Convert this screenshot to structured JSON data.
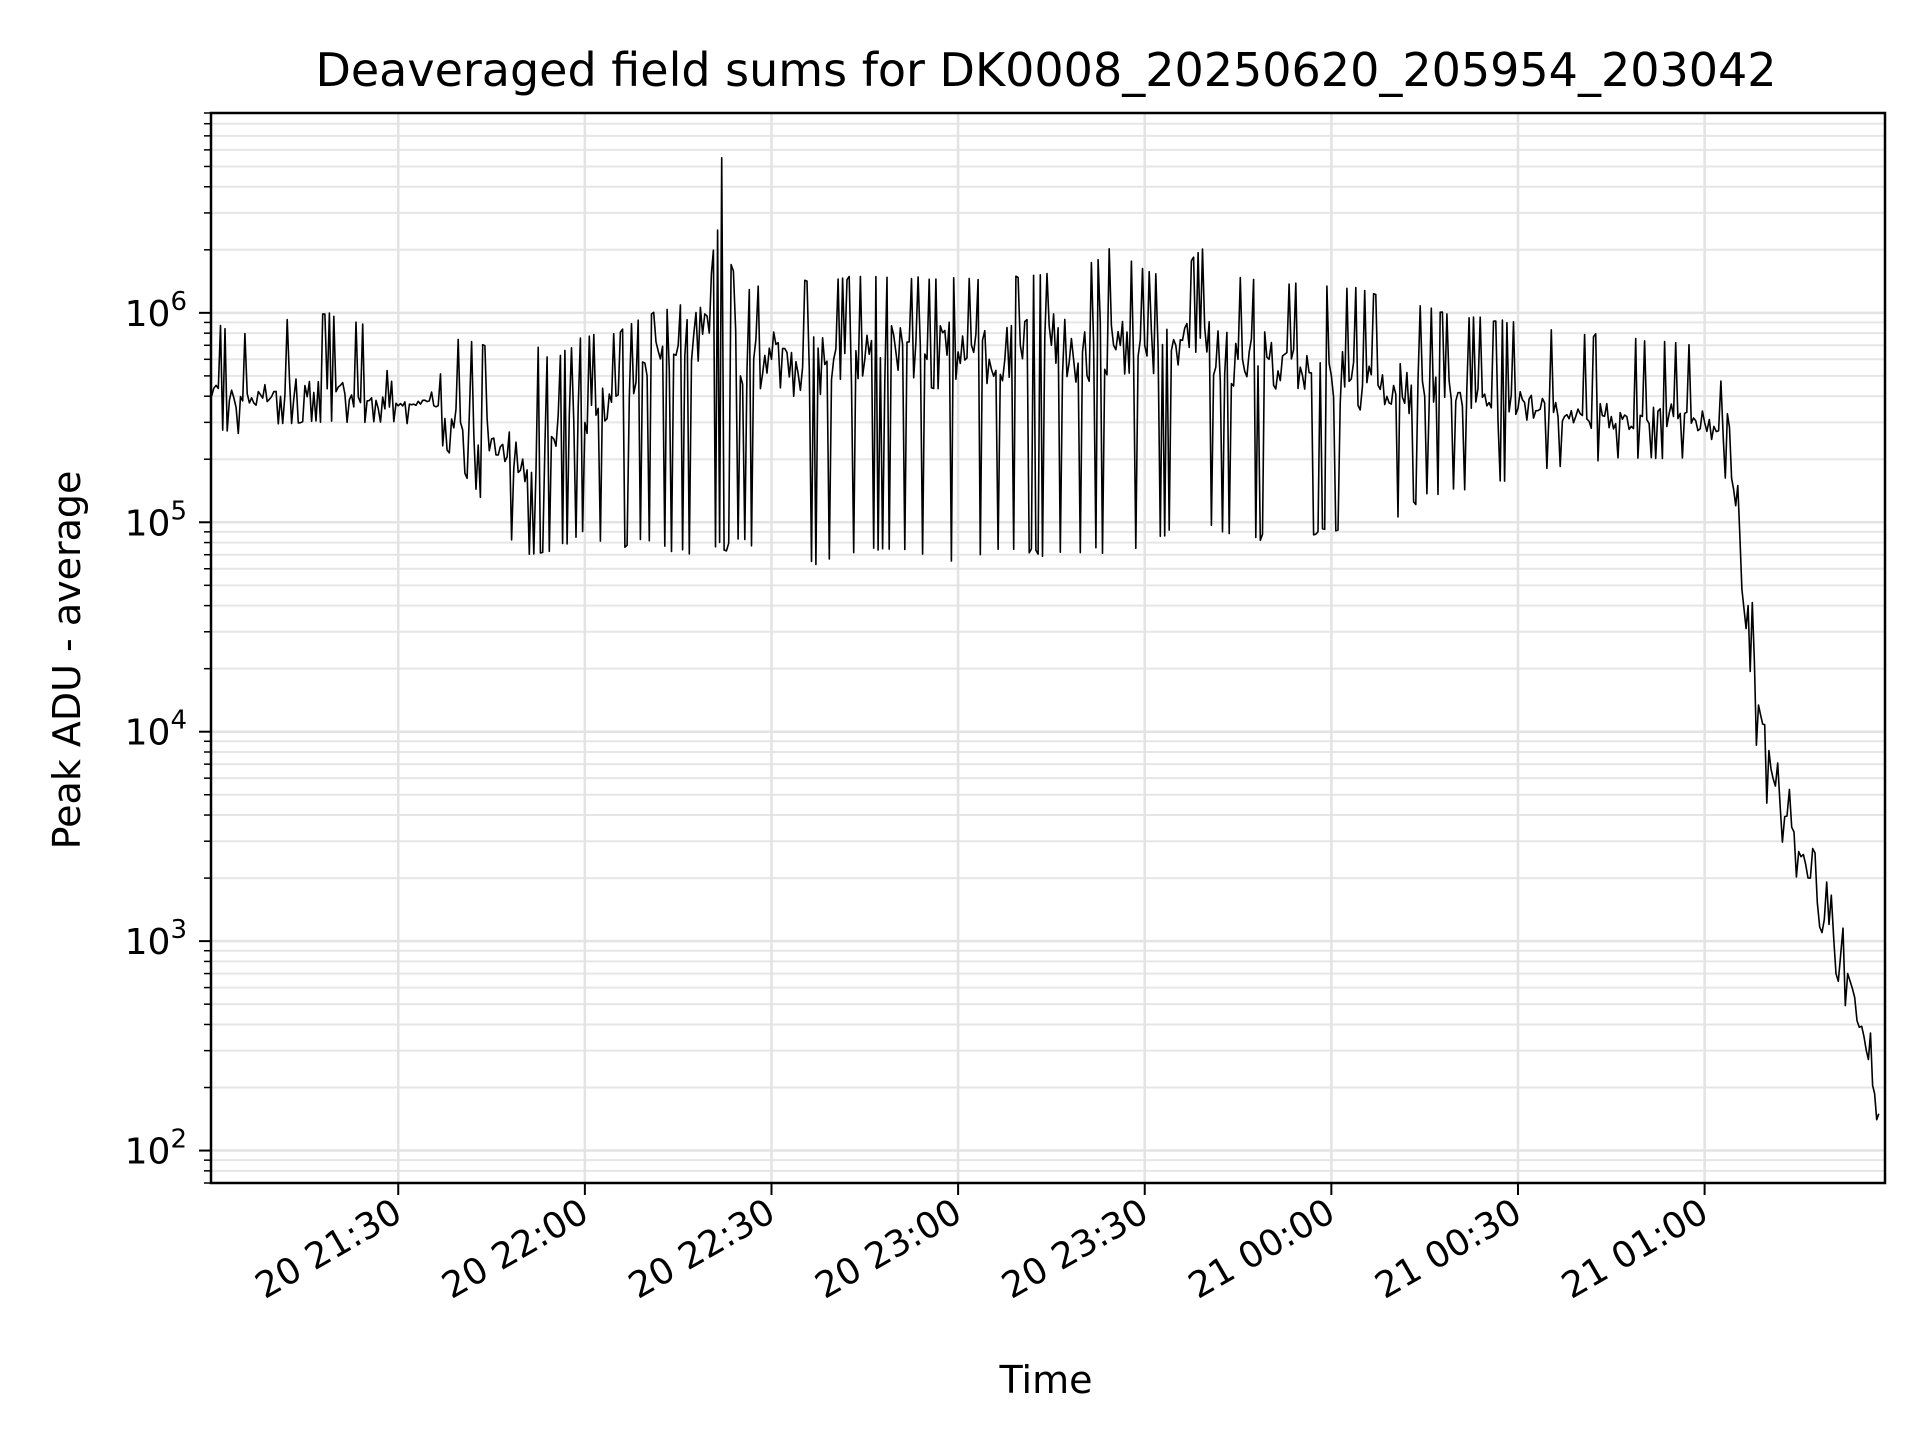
{
  "chart_data": {
    "type": "line",
    "title": "Deaveraged field sums for DK0008_20250620_205954_203042",
    "xlabel": "Time",
    "ylabel": "Peak ADU - average",
    "xscale": "time",
    "yscale": "log",
    "xlim": [
      "2025-06-20 20:59:54",
      "2025-06-21 01:29:00"
    ],
    "ylim": [
      70,
      9000000
    ],
    "grid": true,
    "legend": "none",
    "x_ticks": [
      {
        "value": "2025-06-20 21:30",
        "label": "20 21:30"
      },
      {
        "value": "2025-06-20 22:00",
        "label": "20 22:00"
      },
      {
        "value": "2025-06-20 22:30",
        "label": "20 22:30"
      },
      {
        "value": "2025-06-20 23:00",
        "label": "20 23:00"
      },
      {
        "value": "2025-06-20 23:30",
        "label": "20 23:30"
      },
      {
        "value": "2025-06-21 00:00",
        "label": "21 00:00"
      },
      {
        "value": "2025-06-21 00:30",
        "label": "21 00:30"
      },
      {
        "value": "2025-06-21 01:00",
        "label": "21 01:00"
      }
    ],
    "y_ticks": [
      {
        "value": 100,
        "base": "10",
        "exp": "2"
      },
      {
        "value": 1000,
        "base": "10",
        "exp": "3"
      },
      {
        "value": 10000,
        "base": "10",
        "exp": "4"
      },
      {
        "value": 100000,
        "base": "10",
        "exp": "5"
      },
      {
        "value": 1000000,
        "base": "10",
        "exp": "6"
      }
    ],
    "series": [
      {
        "color": "#000000",
        "x": [
          "2025-06-20 21:00",
          "2025-06-20 21:05",
          "2025-06-20 21:10",
          "2025-06-20 21:15",
          "2025-06-20 21:20",
          "2025-06-20 21:25",
          "2025-06-20 21:30",
          "2025-06-20 21:35",
          "2025-06-20 21:40",
          "2025-06-20 21:45",
          "2025-06-20 21:50",
          "2025-06-20 21:55",
          "2025-06-20 22:00",
          "2025-06-20 22:05",
          "2025-06-20 22:10",
          "2025-06-20 22:15",
          "2025-06-20 22:20",
          "2025-06-20 22:22",
          "2025-06-20 22:25",
          "2025-06-20 22:30",
          "2025-06-20 22:35",
          "2025-06-20 22:40",
          "2025-06-20 22:45",
          "2025-06-20 22:50",
          "2025-06-20 22:55",
          "2025-06-20 23:00",
          "2025-06-20 23:05",
          "2025-06-20 23:10",
          "2025-06-20 23:15",
          "2025-06-20 23:20",
          "2025-06-20 23:25",
          "2025-06-20 23:30",
          "2025-06-20 23:35",
          "2025-06-20 23:40",
          "2025-06-20 23:45",
          "2025-06-20 23:50",
          "2025-06-20 23:55",
          "2025-06-21 00:00",
          "2025-06-21 00:05",
          "2025-06-21 00:10",
          "2025-06-21 00:15",
          "2025-06-21 00:20",
          "2025-06-21 00:25",
          "2025-06-21 00:30",
          "2025-06-21 00:35",
          "2025-06-21 00:40",
          "2025-06-21 00:45",
          "2025-06-21 00:50",
          "2025-06-21 00:55",
          "2025-06-21 01:00",
          "2025-06-21 01:03",
          "2025-06-21 01:05",
          "2025-06-21 01:07",
          "2025-06-21 01:09",
          "2025-06-21 01:11",
          "2025-06-21 01:14",
          "2025-06-21 01:17",
          "2025-06-21 01:20",
          "2025-06-21 01:23",
          "2025-06-21 01:26",
          "2025-06-21 01:28"
        ],
        "y": [
          400000,
          380000,
          420000,
          450000,
          420000,
          380000,
          360000,
          380000,
          300000,
          250000,
          200000,
          250000,
          300000,
          400000,
          500000,
          700000,
          800000,
          5500000,
          500000,
          600000,
          550000,
          600000,
          600000,
          650000,
          600000,
          650000,
          600000,
          700000,
          700000,
          650000,
          700000,
          700000,
          700000,
          650000,
          600000,
          600000,
          550000,
          500000,
          450000,
          450000,
          400000,
          380000,
          360000,
          350000,
          340000,
          330000,
          320000,
          320000,
          320000,
          300000,
          250000,
          120000,
          40000,
          12000,
          6000,
          3500,
          2000,
          1200,
          700,
          300,
          150
        ],
        "envelope_max": [
          900000,
          800000,
          900000,
          1000000,
          1000000,
          900000,
          400000,
          400000,
          800000,
          700000,
          800000,
          600000,
          800000,
          800000,
          1000000,
          1100000,
          1200000,
          5500000,
          1300000,
          1400000,
          1450000,
          1500000,
          1500000,
          1500000,
          1500000,
          1500000,
          1500000,
          1500000,
          1600000,
          1600000,
          2200000,
          1600000,
          1550000,
          2200000,
          1500000,
          1450000,
          1400000,
          1400000,
          1300000,
          1200000,
          1100000,
          1000000,
          950000,
          900000,
          850000,
          800000,
          800000,
          760000,
          750000,
          700000,
          450000,
          180000,
          60000,
          20000,
          8000,
          5000,
          3000,
          1800,
          1000,
          500,
          200
        ],
        "envelope_min": [
          280000,
          260000,
          290000,
          300000,
          300000,
          300000,
          300000,
          280000,
          180000,
          110000,
          70000,
          70000,
          90000,
          70000,
          80000,
          70000,
          65000,
          70000,
          80000,
          70000,
          65000,
          60000,
          70000,
          70000,
          65000,
          65000,
          70000,
          70000,
          65000,
          70000,
          70000,
          70000,
          90000,
          90000,
          85000,
          80000,
          85000,
          90000,
          90000,
          100000,
          130000,
          140000,
          150000,
          160000,
          180000,
          190000,
          200000,
          200000,
          200000,
          200000,
          180000,
          90000,
          25000,
          5000,
          4000,
          2200,
          1500,
          900,
          450,
          200,
          130
        ]
      }
    ]
  }
}
